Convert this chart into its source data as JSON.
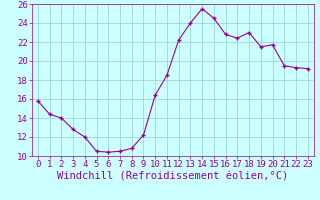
{
  "hours": [
    0,
    1,
    2,
    3,
    4,
    5,
    6,
    7,
    8,
    9,
    10,
    11,
    12,
    13,
    14,
    15,
    16,
    17,
    18,
    19,
    20,
    21,
    22,
    23
  ],
  "values": [
    15.8,
    14.4,
    14.0,
    12.8,
    12.0,
    10.5,
    10.4,
    10.5,
    10.8,
    12.2,
    16.4,
    18.5,
    22.2,
    24.0,
    25.5,
    24.5,
    22.8,
    22.4,
    23.0,
    21.5,
    21.7,
    19.5,
    19.3,
    19.2
  ],
  "line_color": "#990099",
  "marker": "+",
  "marker_size": 3,
  "marker_lw": 1.0,
  "background_color": "#ccffff",
  "grid_color": "#99cccc",
  "xlabel": "Windchill (Refroidissement éolien,°C)",
  "xlabel_color": "#990099",
  "xlabel_fontsize": 7.5,
  "tick_color": "#990099",
  "tick_fontsize": 6.5,
  "ylim": [
    10,
    26
  ],
  "xlim": [
    -0.5,
    23.5
  ],
  "yticks": [
    10,
    12,
    14,
    16,
    18,
    20,
    22,
    24,
    26
  ],
  "xticks": [
    0,
    1,
    2,
    3,
    4,
    5,
    6,
    7,
    8,
    9,
    10,
    11,
    12,
    13,
    14,
    15,
    16,
    17,
    18,
    19,
    20,
    21,
    22,
    23
  ]
}
